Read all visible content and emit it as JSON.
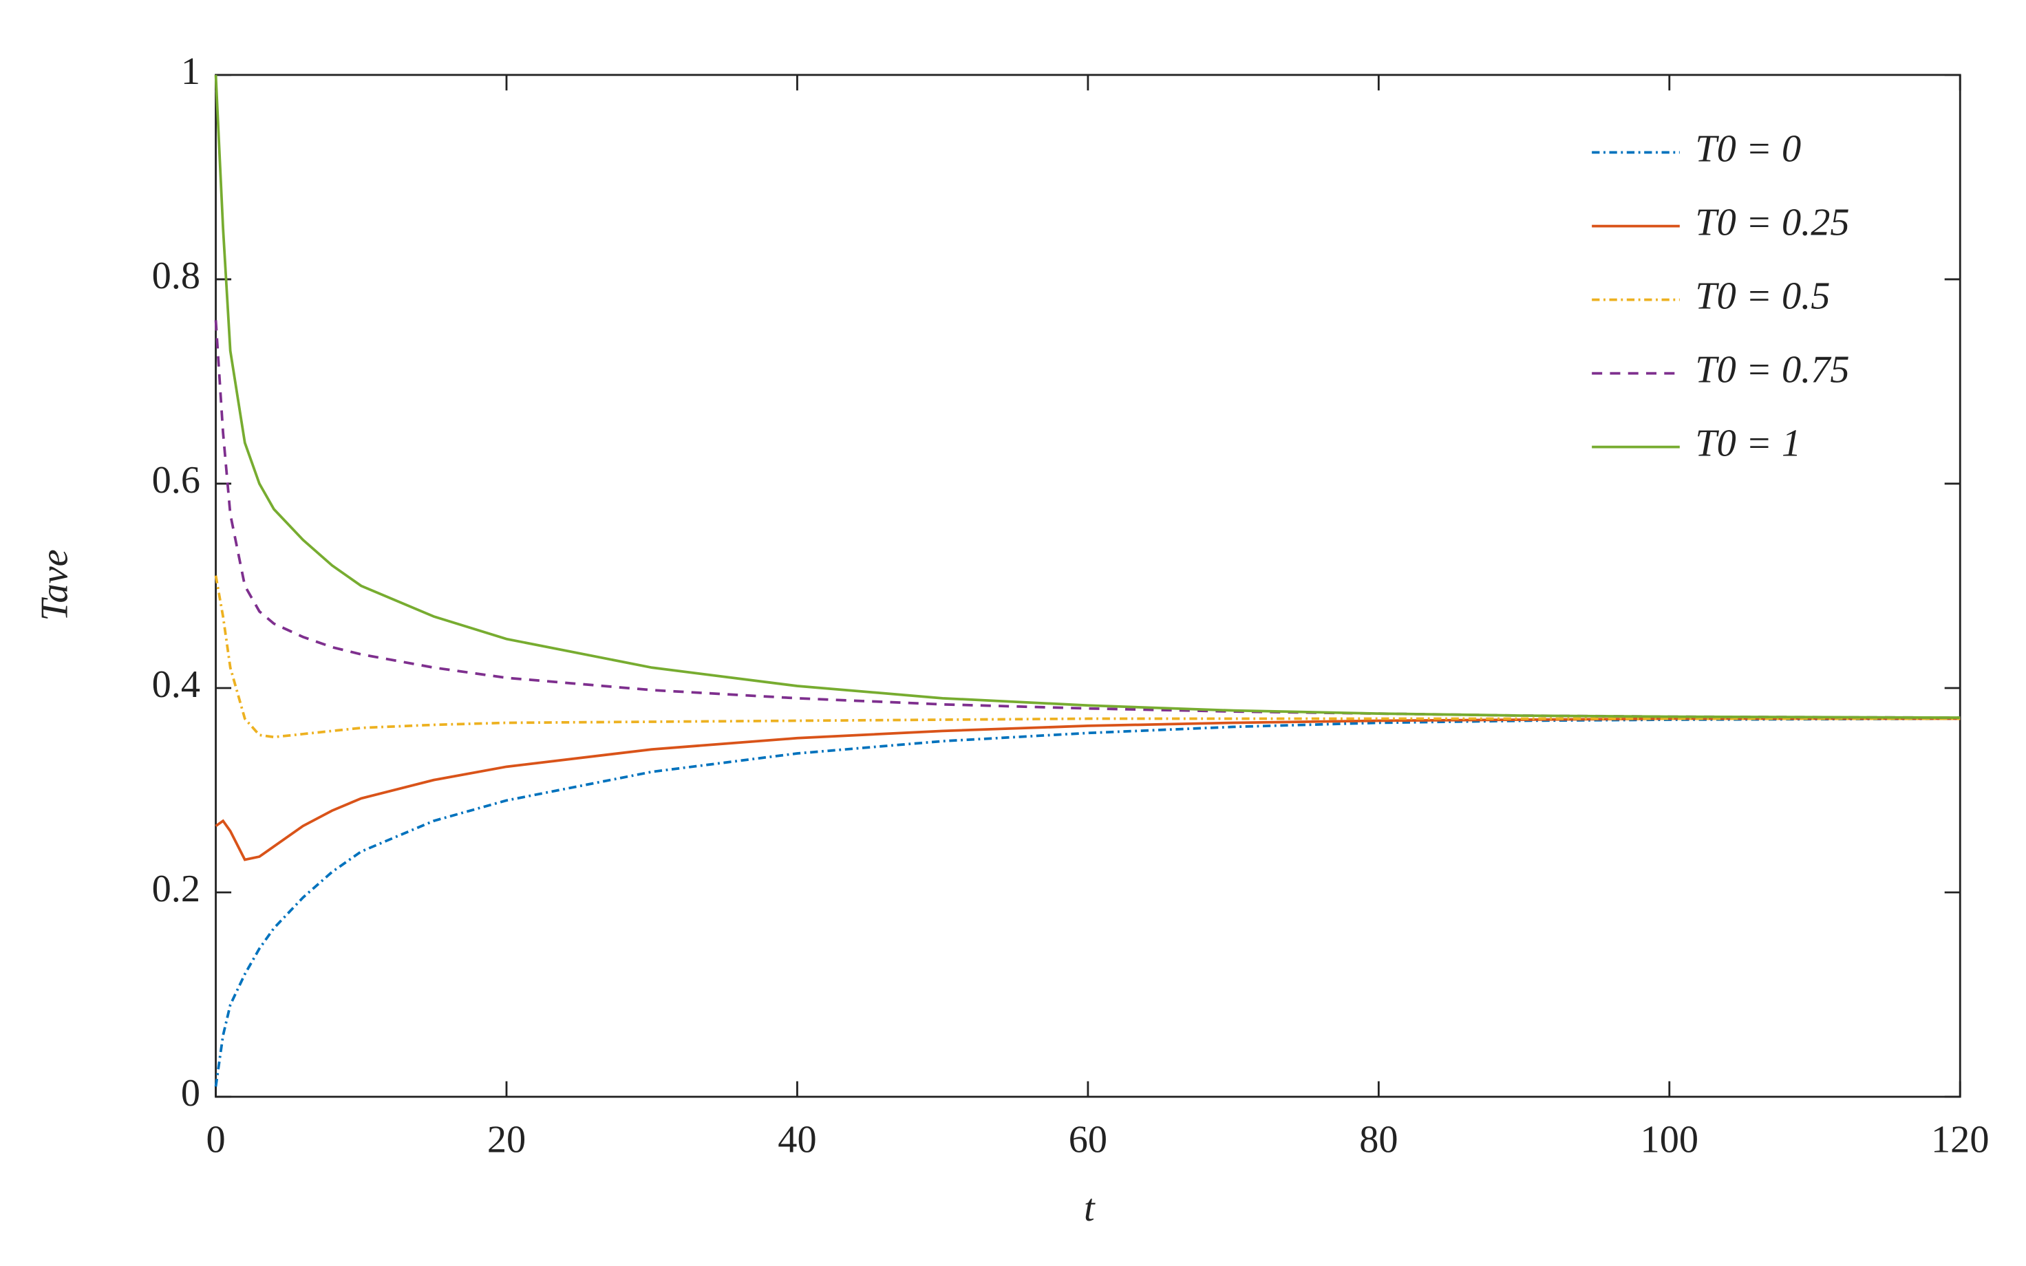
{
  "chart_data": {
    "type": "line",
    "xlabel": "t",
    "ylabel": "Tave",
    "x": [
      0,
      0.5,
      1,
      2,
      3,
      4,
      6,
      8,
      10,
      15,
      20,
      30,
      40,
      50,
      60,
      70,
      80,
      90,
      100,
      120
    ],
    "series": [
      {
        "name": "T0 = 0",
        "color": "#0072bd",
        "dash": "dashdot",
        "values": [
          0.01,
          0.06,
          0.09,
          0.12,
          0.145,
          0.165,
          0.195,
          0.22,
          0.24,
          0.27,
          0.29,
          0.318,
          0.336,
          0.348,
          0.356,
          0.362,
          0.366,
          0.368,
          0.369,
          0.37
        ]
      },
      {
        "name": "T0 = 0.25",
        "color": "#d95319",
        "dash": "solid",
        "values": [
          0.265,
          0.27,
          0.26,
          0.232,
          0.235,
          0.245,
          0.265,
          0.28,
          0.292,
          0.31,
          0.323,
          0.34,
          0.351,
          0.358,
          0.363,
          0.366,
          0.368,
          0.369,
          0.37,
          0.37
        ]
      },
      {
        "name": "T0 = 0.5",
        "color": "#edb120",
        "dash": "dashdot",
        "values": [
          0.51,
          0.47,
          0.42,
          0.37,
          0.354,
          0.352,
          0.355,
          0.358,
          0.361,
          0.364,
          0.366,
          0.367,
          0.368,
          0.369,
          0.37,
          0.37,
          0.37,
          0.37,
          0.37,
          0.37
        ]
      },
      {
        "name": "T0 = 0.75",
        "color": "#7e2f8e",
        "dash": "dashed",
        "values": [
          0.76,
          0.65,
          0.57,
          0.5,
          0.475,
          0.463,
          0.45,
          0.44,
          0.433,
          0.42,
          0.41,
          0.398,
          0.39,
          0.384,
          0.38,
          0.377,
          0.375,
          0.373,
          0.372,
          0.371
        ]
      },
      {
        "name": "T0 = 1",
        "color": "#77ac30",
        "dash": "solid",
        "values": [
          1.0,
          0.85,
          0.73,
          0.64,
          0.6,
          0.575,
          0.545,
          0.52,
          0.5,
          0.47,
          0.448,
          0.42,
          0.402,
          0.39,
          0.383,
          0.378,
          0.375,
          0.373,
          0.372,
          0.371
        ]
      }
    ],
    "xlim": [
      0,
      120
    ],
    "xticks": [
      0,
      20,
      40,
      60,
      80,
      100,
      120
    ],
    "ylim": [
      0,
      1
    ],
    "yticks": [
      0,
      0.2,
      0.4,
      0.6,
      0.8,
      1
    ],
    "grid": false,
    "legend": "top-right"
  }
}
